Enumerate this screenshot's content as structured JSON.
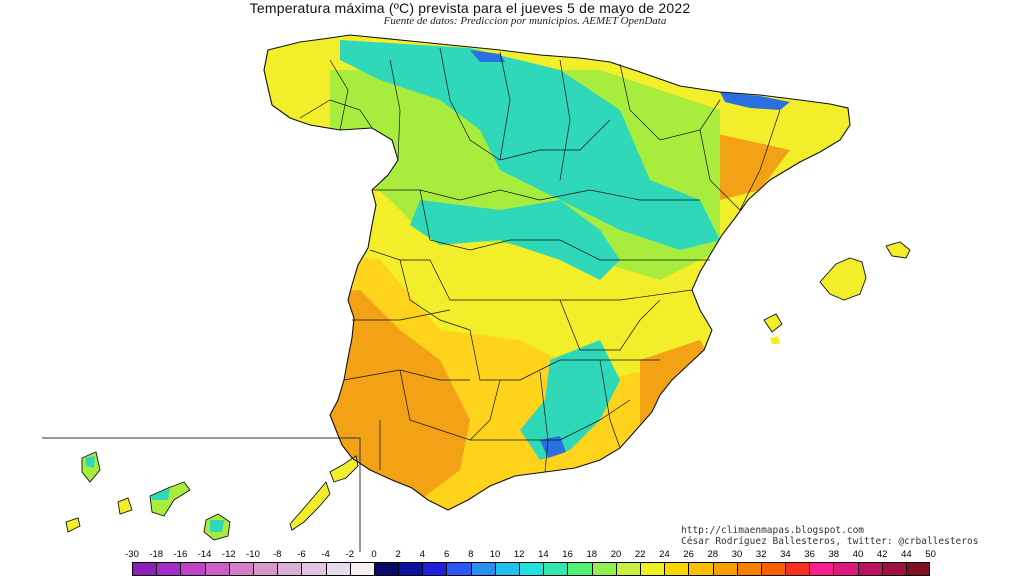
{
  "title": "Temperatura máxima (ºC) prevista para el jueves 5 de mayo de 2022",
  "subtitle": "Fuente de datos: Prediccion por municipios. AEMET OpenData",
  "credit": {
    "url": "http://climaenmapas.blogspot.com",
    "author": "César Rodríguez Ballesteros, twitter: @crballesteros"
  },
  "legend": {
    "ticks": [
      "-30",
      "-18",
      "-16",
      "-14",
      "-12",
      "-10",
      "-8",
      "-6",
      "-4",
      "-2",
      "0",
      "2",
      "4",
      "6",
      "8",
      "10",
      "12",
      "14",
      "16",
      "18",
      "20",
      "22",
      "24",
      "26",
      "28",
      "30",
      "32",
      "34",
      "36",
      "38",
      "40",
      "42",
      "44",
      "50"
    ],
    "colors": [
      "#8b1fb8",
      "#a22ec7",
      "#c040c8",
      "#cc60c4",
      "#d47fc8",
      "#d898cc",
      "#dcb0d6",
      "#e0c4e0",
      "#e8dcec",
      "#f4f0f4",
      "#0a0a6a",
      "#1010a0",
      "#2020d8",
      "#2a58f0",
      "#2a90f0",
      "#20c0f0",
      "#20e0e0",
      "#30e8b0",
      "#50f070",
      "#90f050",
      "#c8f040",
      "#f0f020",
      "#f8d800",
      "#f8c000",
      "#f8a000",
      "#f88000",
      "#f86000",
      "#f83020",
      "#f82090",
      "#e01880",
      "#c01060",
      "#a01040",
      "#801020"
    ]
  },
  "map_layers": {
    "hot": "#f2a214",
    "warm": "#ffd21c",
    "mild": "#f2ee2a",
    "cool": "#a8ec3e",
    "cold": "#2ed8b8",
    "coldest": "#2a70e0"
  }
}
